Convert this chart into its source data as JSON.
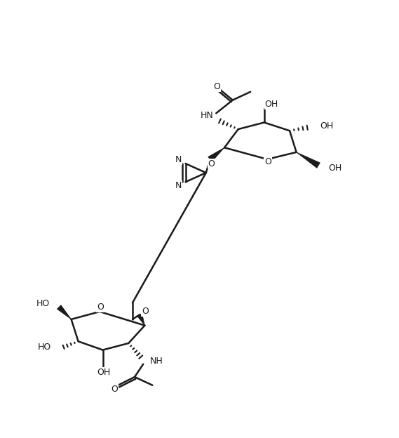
{
  "bg_color": "#ffffff",
  "line_color": "#1a1a1a",
  "bond_lw": 1.8,
  "figsize": [
    5.69,
    6.24
  ],
  "dpi": 100,
  "xlim": [
    0,
    10
  ],
  "ylim": [
    0,
    11
  ]
}
